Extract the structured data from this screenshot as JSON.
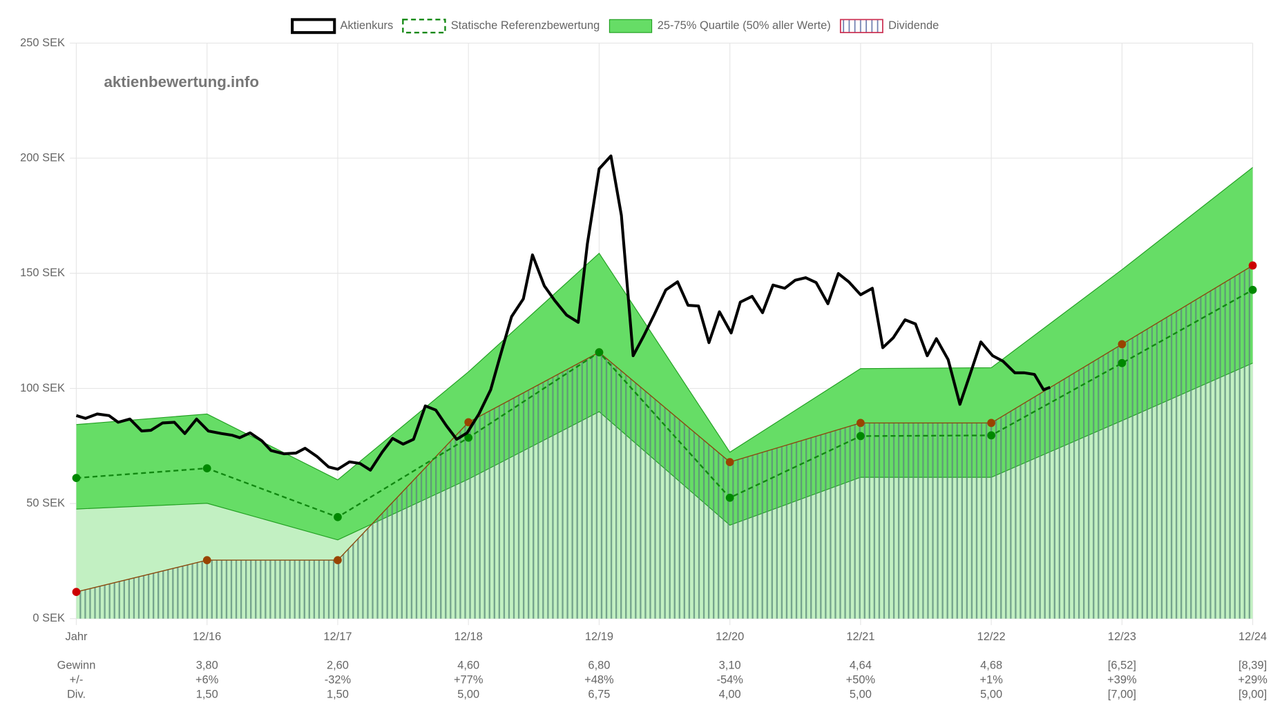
{
  "chart_data": {
    "type": "line",
    "watermark": "aktienbewertung.info",
    "categories": [
      "Jahr",
      "12/16",
      "12/17",
      "12/18",
      "12/19",
      "12/20",
      "12/21",
      "12/22",
      "12/23",
      "12/24"
    ],
    "ylim": [
      0,
      250
    ],
    "yticks": [
      {
        "value": 0,
        "label": "0 SEK"
      },
      {
        "value": 50,
        "label": "50 SEK"
      },
      {
        "value": 100,
        "label": "100 SEK"
      },
      {
        "value": 150,
        "label": "150 SEK"
      },
      {
        "value": 200,
        "label": "200 SEK"
      },
      {
        "value": 250,
        "label": "250 SEK"
      }
    ],
    "grid": true,
    "legend": "top",
    "series": [
      {
        "name": "Aktienkurs",
        "color": "#000000",
        "x": [
          0,
          0.07,
          0.16,
          0.25,
          0.32,
          0.41,
          0.5,
          0.57,
          0.66,
          0.75,
          0.83,
          0.92,
          1.01,
          1.11,
          1.19,
          1.25,
          1.33,
          1.42,
          1.49,
          1.59,
          1.68,
          1.75,
          1.84,
          1.93,
          2.0,
          2.09,
          2.17,
          2.25,
          2.34,
          2.42,
          2.5,
          2.58,
          2.67,
          2.75,
          2.83,
          2.91,
          2.99,
          3.08,
          3.17,
          3.24,
          3.33,
          3.42,
          3.49,
          3.58,
          3.66,
          3.75,
          3.84,
          3.91,
          4.0,
          4.09,
          4.17,
          4.26,
          4.34,
          4.42,
          4.51,
          4.6,
          4.68,
          4.76,
          4.84,
          4.92,
          5.01,
          5.08,
          5.17,
          5.25,
          5.33,
          5.42,
          5.5,
          5.58,
          5.66,
          5.75,
          5.83,
          5.91,
          6.0,
          6.09,
          6.17,
          6.25,
          6.34,
          6.42,
          6.51,
          6.58,
          6.67,
          6.76,
          6.84,
          6.92,
          7.01,
          7.09,
          7.18,
          7.25,
          7.33,
          7.4,
          7.45
        ],
        "values": [
          88.2,
          87,
          88.9,
          88.2,
          85.3,
          86.7,
          81.5,
          81.8,
          85,
          85.3,
          80.4,
          86.7,
          81.5,
          80.4,
          79.7,
          78.6,
          80.7,
          77.2,
          73,
          71.6,
          71.9,
          74,
          70.5,
          65.9,
          64.9,
          68.1,
          67.4,
          64.5,
          72.3,
          78.3,
          75.8,
          77.9,
          92.4,
          90.6,
          83.9,
          77.9,
          80.7,
          88.9,
          99.4,
          113.5,
          131.2,
          138.9,
          158,
          144.6,
          138.2,
          131.9,
          128.7,
          162.9,
          195.4,
          201,
          175.2,
          114.2,
          122.7,
          131.9,
          142.8,
          146.3,
          136.1,
          135.8,
          119.9,
          133.3,
          124.1,
          137.5,
          140,
          132.9,
          144.9,
          143.5,
          147,
          148.1,
          146,
          136.8,
          149.9,
          146.3,
          140.7,
          143.5,
          117.7,
          122,
          129.8,
          128,
          114.2,
          121.6,
          112.5,
          93.1,
          106.5,
          120.2,
          114.2,
          111.8,
          106.8,
          106.8,
          106.1,
          99.4,
          100.5
        ]
      },
      {
        "name": "Statische Referenzbewertung",
        "color": "#118811",
        "values": [
          61.1,
          65.3,
          44.1,
          78.6,
          115.7,
          52.5,
          79.3,
          79.6,
          111.0,
          142.8
        ]
      },
      {
        "name": "25-75% Quartile (50% aller Werte)",
        "color": "#66dd66",
        "lower_fill": "#c2f0c2",
        "border": "#22a022",
        "high": [
          84.3,
          88.9,
          60.3,
          107.2,
          158.7,
          72.3,
          108.6,
          109,
          151.6,
          196
        ],
        "low": [
          47.6,
          50.1,
          34.2,
          60.6,
          89.9,
          40.6,
          61.4,
          61.4,
          86,
          111
        ]
      },
      {
        "name": "Dividende",
        "color": "#cc3355",
        "line_color": "#8a4a10",
        "dot_color": "#994400",
        "values": [
          11.6,
          25.4,
          25.4,
          85.3,
          115.7,
          68,
          85,
          85,
          119.2,
          153.4
        ]
      }
    ],
    "table": {
      "rows": [
        {
          "label": "Gewinn",
          "cells": [
            null,
            "3,80",
            "2,60",
            "4,60",
            "6,80",
            "3,10",
            "4,64",
            "4,68",
            "[6,52]",
            "[8,39]"
          ]
        },
        {
          "label": "+/-",
          "cells": [
            null,
            "+6%",
            "-32%",
            "+77%",
            "+48%",
            "-54%",
            "+50%",
            "+1%",
            "+39%",
            "+29%"
          ]
        },
        {
          "label": "Div.",
          "cells": [
            null,
            "1,50",
            "1,50",
            "5,00",
            "6,75",
            "4,00",
            "5,00",
            "5,00",
            "[7,00]",
            "[9,00]"
          ]
        }
      ]
    }
  }
}
